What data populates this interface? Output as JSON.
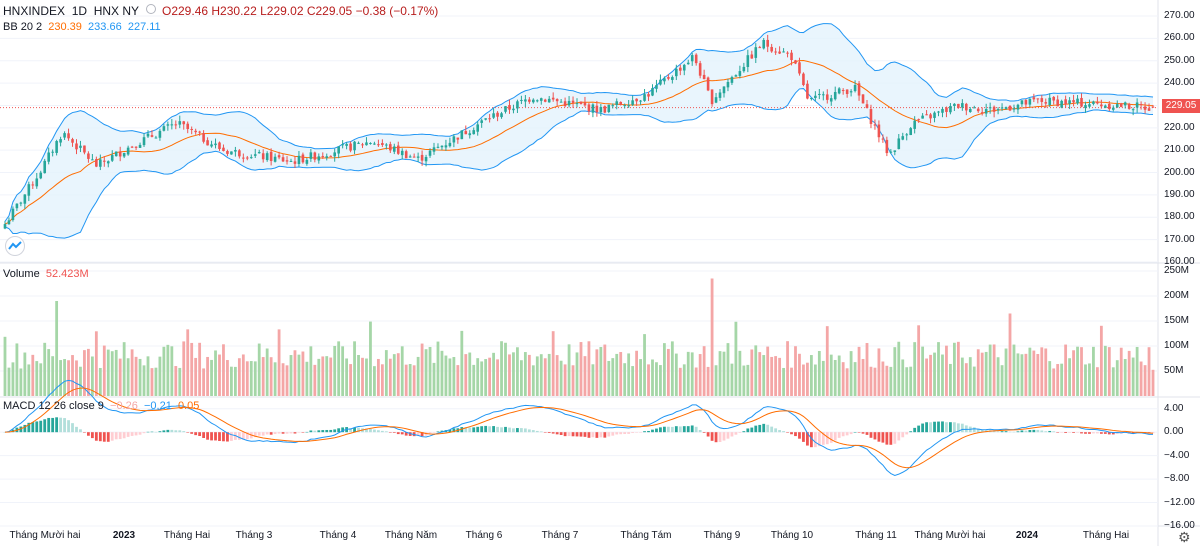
{
  "header": {
    "symbol": "HNXINDEX",
    "interval": "1D",
    "exchange": "HNX NY",
    "open": "O229.46",
    "high": "H230.22",
    "low": "L229.02",
    "close": "C229.05",
    "change": "−0.38 (−0.17%)"
  },
  "bb": {
    "label": "BB 20 2",
    "basis": "230.39",
    "upper": "233.66",
    "lower": "227.11",
    "colors": {
      "basis": "#ff6d00",
      "band": "#2196f3",
      "fill": "#e3f2fd"
    }
  },
  "volume": {
    "label": "Volume",
    "value": "52.423M"
  },
  "macd": {
    "label": "MACD 12 26 close 9",
    "hist": "−0.26",
    "macd": "−0.21",
    "signal": "0.05",
    "colors": {
      "macd": "#2196f3",
      "signal": "#ff6d00"
    }
  },
  "price_axis": [
    "270.00",
    "260.00",
    "250.00",
    "240.00",
    "230.00",
    "220.00",
    "210.00",
    "200.00",
    "190.00",
    "180.00",
    "170.00",
    "160.00"
  ],
  "last_price": "229.05",
  "volume_axis": [
    "250M",
    "200M",
    "150M",
    "100M",
    "50M"
  ],
  "macd_axis": [
    "4.00",
    "0.00",
    "−4.00",
    "−8.00",
    "−12.00",
    "−16.00"
  ],
  "time_axis": [
    {
      "label": "Tháng Mười hai",
      "bold": false
    },
    {
      "label": "2023",
      "bold": true
    },
    {
      "label": "Tháng Hai",
      "bold": false
    },
    {
      "label": "Tháng 3",
      "bold": false
    },
    {
      "label": "Tháng 4",
      "bold": false
    },
    {
      "label": "Tháng Năm",
      "bold": false
    },
    {
      "label": "Tháng 6",
      "bold": false
    },
    {
      "label": "Tháng 7",
      "bold": false
    },
    {
      "label": "Tháng Tám",
      "bold": false
    },
    {
      "label": "Tháng 9",
      "bold": false
    },
    {
      "label": "Tháng 10",
      "bold": false
    },
    {
      "label": "Tháng 11",
      "bold": false
    },
    {
      "label": "Tháng Mười hai",
      "bold": false
    },
    {
      "label": "2024",
      "bold": true
    },
    {
      "label": "Tháng Hai",
      "bold": false
    }
  ],
  "colors": {
    "up": "#26a69a",
    "down": "#ef5350",
    "vol_up": "#a5d6a7",
    "vol_down": "#f4a6a6",
    "grid": "#f0f3fa"
  },
  "chart_data": {
    "type": "candlestick",
    "price_ylim": [
      160,
      270
    ],
    "volume_ylim": [
      0,
      250
    ],
    "macd_ylim": [
      -16,
      6
    ],
    "closes_keypoints": [
      {
        "pos": 0,
        "close": 177
      },
      {
        "pos": 0.03,
        "close": 200
      },
      {
        "pos": 0.05,
        "close": 218
      },
      {
        "pos": 0.08,
        "close": 203
      },
      {
        "pos": 0.11,
        "close": 212
      },
      {
        "pos": 0.15,
        "close": 222
      },
      {
        "pos": 0.19,
        "close": 210
      },
      {
        "pos": 0.25,
        "close": 205
      },
      {
        "pos": 0.32,
        "close": 214
      },
      {
        "pos": 0.36,
        "close": 206
      },
      {
        "pos": 0.42,
        "close": 224
      },
      {
        "pos": 0.46,
        "close": 234
      },
      {
        "pos": 0.52,
        "close": 228
      },
      {
        "pos": 0.56,
        "close": 235
      },
      {
        "pos": 0.6,
        "close": 252
      },
      {
        "pos": 0.615,
        "close": 232
      },
      {
        "pos": 0.66,
        "close": 258
      },
      {
        "pos": 0.685,
        "close": 252
      },
      {
        "pos": 0.7,
        "close": 232
      },
      {
        "pos": 0.74,
        "close": 238
      },
      {
        "pos": 0.77,
        "close": 208
      },
      {
        "pos": 0.79,
        "close": 222
      },
      {
        "pos": 0.83,
        "close": 230
      },
      {
        "pos": 0.86,
        "close": 228
      },
      {
        "pos": 0.9,
        "close": 232
      },
      {
        "pos": 0.94,
        "close": 231
      },
      {
        "pos": 1,
        "close": 229.05
      }
    ]
  }
}
